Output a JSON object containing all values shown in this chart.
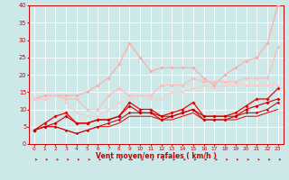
{
  "xlabel": "Vent moyen/en rafales ( km/h )",
  "xlim": [
    -0.5,
    23.5
  ],
  "ylim": [
    0,
    40
  ],
  "xticks": [
    0,
    1,
    2,
    3,
    4,
    5,
    6,
    7,
    8,
    9,
    10,
    11,
    12,
    13,
    14,
    15,
    16,
    17,
    18,
    19,
    20,
    21,
    22,
    23
  ],
  "yticks": [
    0,
    5,
    10,
    15,
    20,
    25,
    30,
    35,
    40
  ],
  "background_color": "#cce8e8",
  "grid_color": "#ffffff",
  "series": [
    {
      "x": [
        0,
        1,
        2,
        3,
        4,
        5,
        6,
        7,
        8,
        9,
        10,
        11,
        12,
        13,
        14,
        15,
        16,
        17,
        18,
        19,
        20,
        21,
        22,
        23
      ],
      "y": [
        13,
        14,
        14,
        14,
        14,
        15,
        17,
        19,
        23,
        29,
        25,
        21,
        22,
        22,
        22,
        22,
        19,
        17,
        20,
        22,
        24,
        25,
        29,
        40
      ],
      "color": "#ffaaaa",
      "lw": 0.8,
      "marker": "D",
      "ms": 1.8
    },
    {
      "x": [
        0,
        1,
        2,
        3,
        4,
        5,
        6,
        7,
        8,
        9,
        10,
        11,
        12,
        13,
        14,
        15,
        16,
        17,
        18,
        19,
        20,
        21,
        22,
        23
      ],
      "y": [
        13,
        13,
        14,
        13,
        13,
        10,
        10,
        14,
        16,
        14,
        14,
        14,
        17,
        17,
        17,
        19,
        18,
        18,
        18,
        18,
        19,
        19,
        19,
        28
      ],
      "color": "#ffbbbb",
      "lw": 0.8,
      "marker": "D",
      "ms": 1.8
    },
    {
      "x": [
        0,
        1,
        2,
        3,
        4,
        5,
        6,
        7,
        8,
        9,
        10,
        11,
        12,
        13,
        14,
        15,
        16,
        17,
        18,
        19,
        20,
        21,
        22,
        23
      ],
      "y": [
        13,
        13,
        14,
        12,
        9,
        8,
        8,
        10,
        12,
        13,
        14,
        13,
        13,
        15,
        15,
        16,
        17,
        16,
        17,
        17,
        17,
        17,
        17,
        17
      ],
      "color": "#ffcccc",
      "lw": 0.8,
      "marker": "D",
      "ms": 1.5
    },
    {
      "x": [
        0,
        1,
        2,
        3,
        4,
        5,
        6,
        7,
        8,
        9,
        10,
        11,
        12,
        13,
        14,
        15,
        16,
        17,
        18,
        19,
        20,
        21,
        22,
        23
      ],
      "y": [
        4,
        6,
        8,
        9,
        6,
        6,
        7,
        7,
        8,
        12,
        10,
        10,
        8,
        9,
        10,
        12,
        8,
        8,
        8,
        9,
        11,
        13,
        13,
        16
      ],
      "color": "#ee0000",
      "lw": 0.9,
      "marker": "D",
      "ms": 1.8
    },
    {
      "x": [
        0,
        1,
        2,
        3,
        4,
        5,
        6,
        7,
        8,
        9,
        10,
        11,
        12,
        13,
        14,
        15,
        16,
        17,
        18,
        19,
        20,
        21,
        22,
        23
      ],
      "y": [
        4,
        5,
        6,
        8,
        6,
        6,
        7,
        7,
        8,
        11,
        9,
        9,
        7,
        8,
        9,
        10,
        7,
        7,
        7,
        8,
        10,
        11,
        12,
        13
      ],
      "color": "#cc0000",
      "lw": 0.8,
      "marker": "D",
      "ms": 1.8
    },
    {
      "x": [
        0,
        1,
        2,
        3,
        4,
        5,
        6,
        7,
        8,
        9,
        10,
        11,
        12,
        13,
        14,
        15,
        16,
        17,
        18,
        19,
        20,
        21,
        22,
        23
      ],
      "y": [
        4,
        5,
        5,
        4,
        3,
        4,
        5,
        6,
        7,
        9,
        9,
        9,
        8,
        8,
        9,
        10,
        8,
        8,
        8,
        8,
        9,
        9,
        10,
        12
      ],
      "color": "#bb0000",
      "lw": 0.7,
      "marker": "D",
      "ms": 1.5
    },
    {
      "x": [
        0,
        1,
        2,
        3,
        4,
        5,
        6,
        7,
        8,
        9,
        10,
        11,
        12,
        13,
        14,
        15,
        16,
        17,
        18,
        19,
        20,
        21,
        22,
        23
      ],
      "y": [
        4,
        5,
        5,
        4,
        3,
        4,
        5,
        5,
        6,
        8,
        8,
        8,
        7,
        7,
        8,
        9,
        7,
        7,
        7,
        7,
        8,
        8,
        9,
        10
      ],
      "color": "#dd0000",
      "lw": 0.7,
      "marker": null,
      "ms": 0
    }
  ],
  "arrow_color": "#cc0000",
  "xlabel_fontsize": 5.5,
  "xlabel_fontweight": "bold",
  "xtick_fontsize": 4.2,
  "ytick_fontsize": 4.8
}
